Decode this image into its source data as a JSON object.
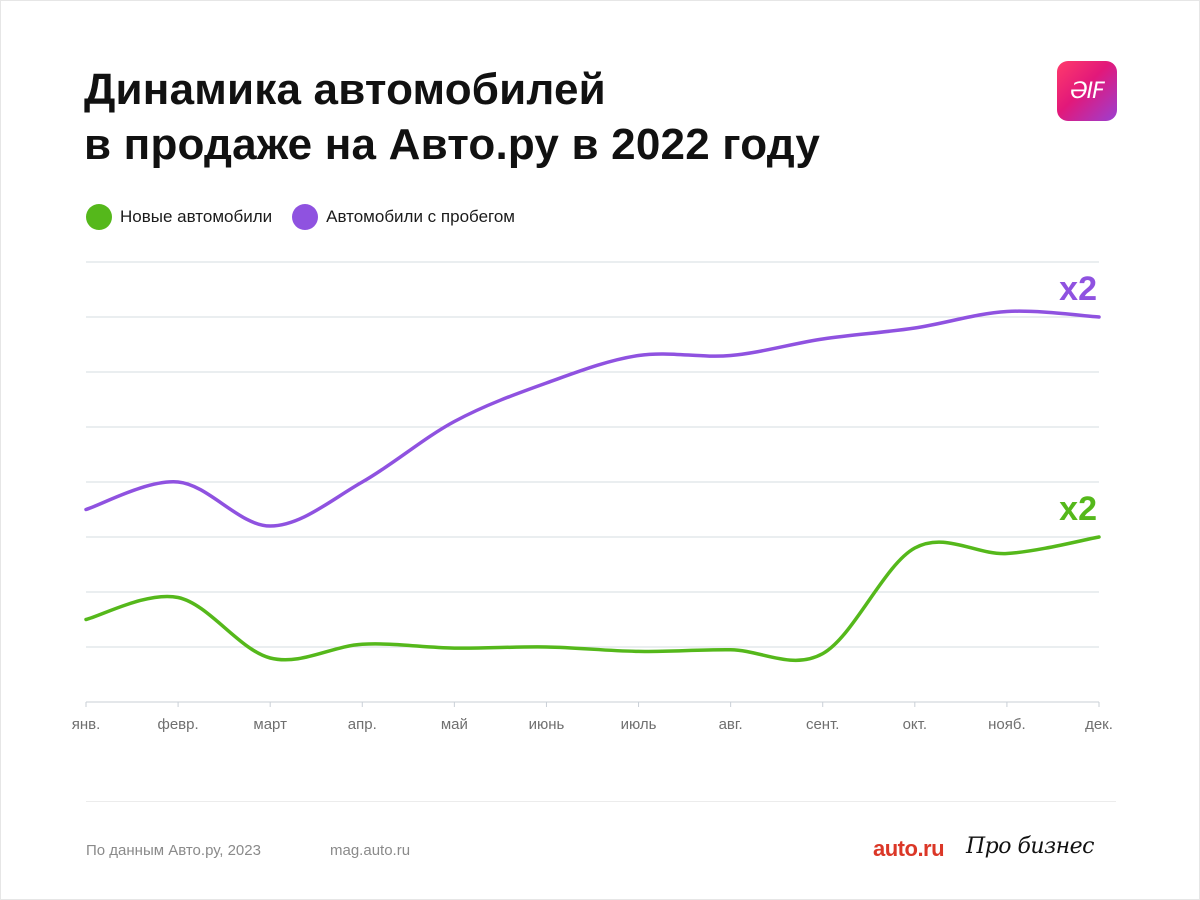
{
  "header": {
    "title_line1": "Динамика автомобилей",
    "title_line2": "в продаже на Авто.ру в 2022 году",
    "logo_text": "ƏIF"
  },
  "chart_data": {
    "type": "line",
    "categories": [
      "янв.",
      "февр.",
      "март",
      "апр.",
      "май",
      "июнь",
      "июль",
      "авг.",
      "сент.",
      "окт.",
      "нояб.",
      "дек."
    ],
    "ylim": [
      0,
      8
    ],
    "grid": true,
    "legend_position": "top-left",
    "series": [
      {
        "name": "Новые автомобили",
        "color": "#55b81b",
        "values": [
          1.5,
          1.9,
          0.8,
          1.05,
          0.98,
          1.0,
          0.92,
          0.95,
          0.88,
          2.8,
          2.7,
          3.0
        ],
        "end_label": "x2"
      },
      {
        "name": "Автомобили с пробегом",
        "color": "#8f52e0",
        "values": [
          3.5,
          4.0,
          3.2,
          4.0,
          5.1,
          5.8,
          6.3,
          6.3,
          6.6,
          6.8,
          7.1,
          7.0
        ],
        "end_label": "x2"
      }
    ]
  },
  "footer": {
    "source": "По данным Авто.ру, 2023",
    "site": "mag.auto.ru",
    "brand_autoru": "auto.ru",
    "brand_probusiness": "Про бизнес"
  }
}
